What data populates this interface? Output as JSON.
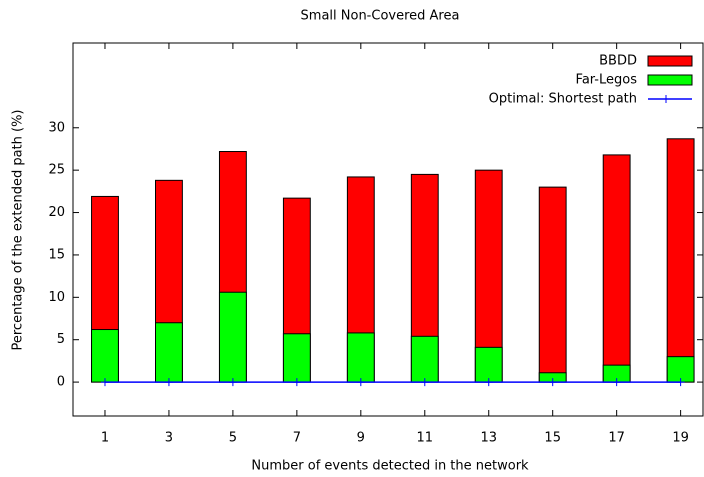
{
  "chart_data": {
    "type": "bar",
    "title": "Small Non-Covered Area",
    "x_label": "Number of events detected in the network",
    "y_label": "Percentage of the extended path (%)",
    "x": [
      1,
      3,
      5,
      7,
      9,
      11,
      13,
      15,
      17,
      19
    ],
    "xlim": [
      0,
      19.7
    ],
    "xticks": [
      1,
      3,
      5,
      7,
      9,
      11,
      13,
      15,
      17,
      19
    ],
    "ylim": [
      -4,
      40
    ],
    "yticks": [
      0,
      5,
      10,
      15,
      20,
      25,
      30
    ],
    "legend": "top-right",
    "series": [
      {
        "name": "BBDD",
        "color": "#ff0000",
        "style": "bar",
        "values": [
          21.9,
          23.8,
          27.2,
          21.7,
          24.2,
          24.5,
          25.0,
          23.0,
          26.8,
          28.7
        ]
      },
      {
        "name": "Far-Legos",
        "color": "#00ff00",
        "style": "bar",
        "values": [
          6.2,
          7.0,
          10.6,
          5.7,
          5.8,
          5.4,
          4.1,
          1.1,
          2.0,
          3.0
        ]
      },
      {
        "name": "Optimal: Shortest path",
        "color": "#0000ff",
        "style": "line",
        "values": [
          0,
          0,
          0,
          0,
          0,
          0,
          0,
          0,
          0,
          0
        ]
      }
    ]
  }
}
